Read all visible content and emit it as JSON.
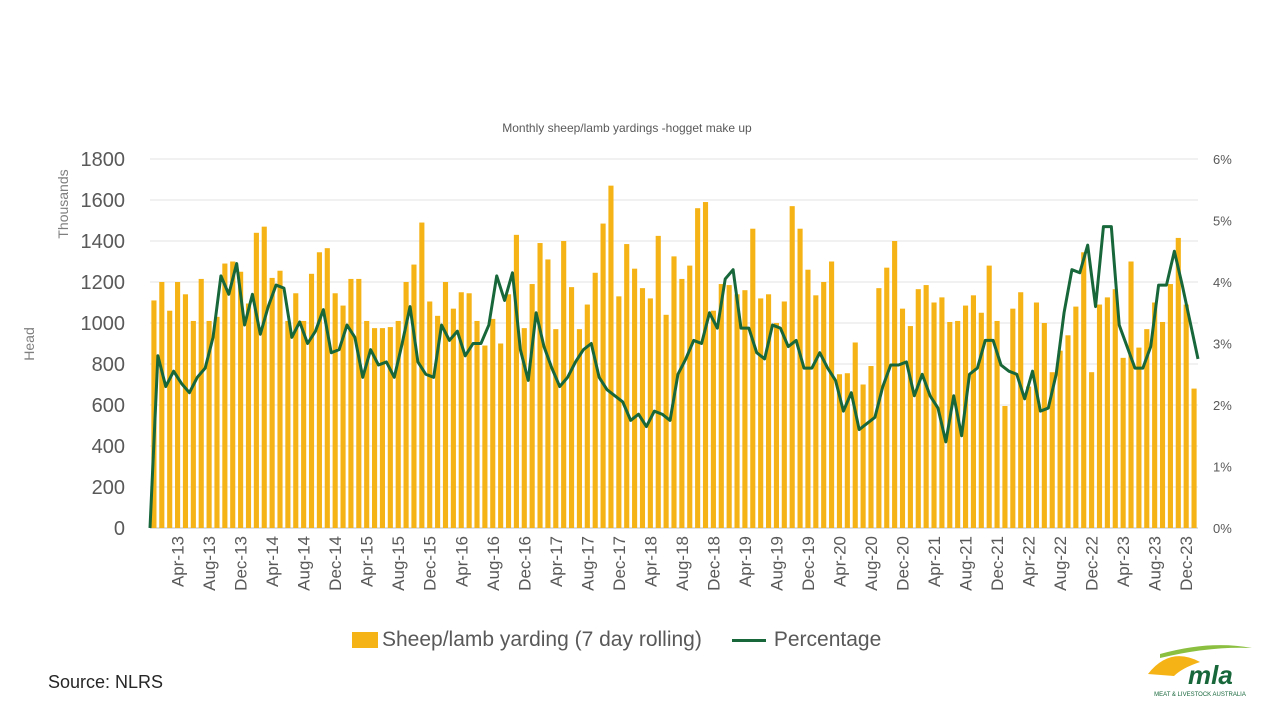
{
  "chart_data": {
    "type": "bar+line",
    "title": "Monthly sheep/lamb  yardings -hogget make up",
    "y_left": {
      "label": "Head",
      "units_label": "Thousands",
      "min": 0,
      "max": 1800,
      "step": 200,
      "ticks": [
        "0",
        "200",
        "400",
        "600",
        "800",
        "1000",
        "1200",
        "1400",
        "1600",
        "1800"
      ]
    },
    "y_right": {
      "min": 0,
      "max": 6,
      "step": 1,
      "ticks": [
        "0%",
        "1%",
        "2%",
        "3%",
        "4%",
        "5%",
        "6%"
      ]
    },
    "x_tick_labels": [
      "Apr-13",
      "Aug-13",
      "Dec-13",
      "Apr-14",
      "Aug-14",
      "Dec-14",
      "Apr-15",
      "Aug-15",
      "Dec-15",
      "Apr-16",
      "Aug-16",
      "Dec-16",
      "Apr-17",
      "Aug-17",
      "Dec-17",
      "Apr-18",
      "Aug-18",
      "Dec-18",
      "Apr-19",
      "Aug-19",
      "Dec-19",
      "Apr-20",
      "Aug-20",
      "Dec-20",
      "Apr-21",
      "Aug-21",
      "Dec-21",
      "Apr-22",
      "Aug-22",
      "Dec-22",
      "Apr-23",
      "Aug-23",
      "Dec-23"
    ],
    "start_month": "Jan-13",
    "series": [
      {
        "name": "Sheep/lamb yarding (7 day rolling)",
        "type": "bar",
        "axis": "left",
        "color": "#f5b315",
        "values": [
          1110,
          1200,
          1060,
          1200,
          1140,
          1010,
          1215,
          1010,
          1030,
          1290,
          1300,
          1250,
          1095,
          1440,
          1470,
          1220,
          1255,
          1010,
          1145,
          1010,
          1240,
          1345,
          1365,
          1145,
          1085,
          1215,
          1215,
          1010,
          975,
          975,
          980,
          1010,
          1200,
          1285,
          1490,
          1105,
          1035,
          1200,
          1070,
          1150,
          1145,
          1010,
          890,
          1020,
          900,
          1140,
          1430,
          975,
          1190,
          1390,
          1310,
          970,
          1400,
          1175,
          970,
          1090,
          1245,
          1485,
          1670,
          1130,
          1385,
          1265,
          1170,
          1120,
          1425,
          1040,
          1325,
          1215,
          1280,
          1560,
          1590,
          1060,
          1190,
          1185,
          1140,
          1160,
          1460,
          1120,
          1140,
          1000,
          1105,
          1570,
          1460,
          1260,
          1135,
          1200,
          1300,
          750,
          755,
          905,
          700,
          790,
          1170,
          1270,
          1400,
          1070,
          985,
          1165,
          1185,
          1100,
          1125,
          1005,
          1010,
          1085,
          1135,
          1050,
          1280,
          1010,
          595,
          1070,
          1150,
          690,
          1100,
          1000,
          760,
          865,
          940,
          1080,
          1345,
          760,
          1090,
          1125,
          1165,
          830,
          1300,
          880,
          970,
          1100,
          1005,
          1190,
          1415,
          1090,
          680
        ]
      },
      {
        "name": "Percentage",
        "type": "line",
        "axis": "right",
        "color": "#17673b",
        "values": [
          0,
          2.8,
          2.3,
          2.55,
          2.35,
          2.2,
          2.45,
          2.6,
          3.1,
          4.1,
          3.8,
          4.3,
          3.3,
          3.8,
          3.15,
          3.6,
          3.95,
          3.9,
          3.1,
          3.35,
          3.0,
          3.2,
          3.55,
          2.85,
          2.9,
          3.3,
          3.1,
          2.45,
          2.9,
          2.65,
          2.7,
          2.45,
          3.0,
          3.6,
          2.7,
          2.5,
          2.45,
          3.3,
          3.05,
          3.2,
          2.8,
          3.0,
          3.0,
          3.3,
          4.1,
          3.7,
          4.15,
          2.9,
          2.4,
          3.5,
          2.95,
          2.6,
          2.3,
          2.45,
          2.7,
          2.9,
          3.0,
          2.45,
          2.25,
          2.15,
          2.05,
          1.75,
          1.85,
          1.65,
          1.9,
          1.85,
          1.75,
          2.5,
          2.75,
          3.05,
          3.0,
          3.5,
          3.25,
          4.05,
          4.2,
          3.25,
          3.25,
          2.85,
          2.75,
          3.3,
          3.25,
          2.95,
          3.05,
          2.6,
          2.6,
          2.85,
          2.6,
          2.4,
          1.9,
          2.2,
          1.6,
          1.7,
          1.8,
          2.3,
          2.65,
          2.65,
          2.7,
          2.15,
          2.5,
          2.15,
          1.95,
          1.4,
          2.15,
          1.5,
          2.5,
          2.6,
          3.05,
          3.05,
          2.65,
          2.55,
          2.5,
          2.1,
          2.55,
          1.9,
          1.95,
          2.5,
          3.5,
          4.2,
          4.15,
          4.6,
          3.6,
          4.9,
          4.9,
          3.3,
          2.95,
          2.6,
          2.6,
          2.95,
          3.95,
          3.95,
          4.5,
          3.95,
          3.35,
          2.75
        ]
      }
    ]
  },
  "source": "Source: NLRS",
  "logo": {
    "text": "mla",
    "subtext": "MEAT & LIVESTOCK AUSTRALIA"
  }
}
